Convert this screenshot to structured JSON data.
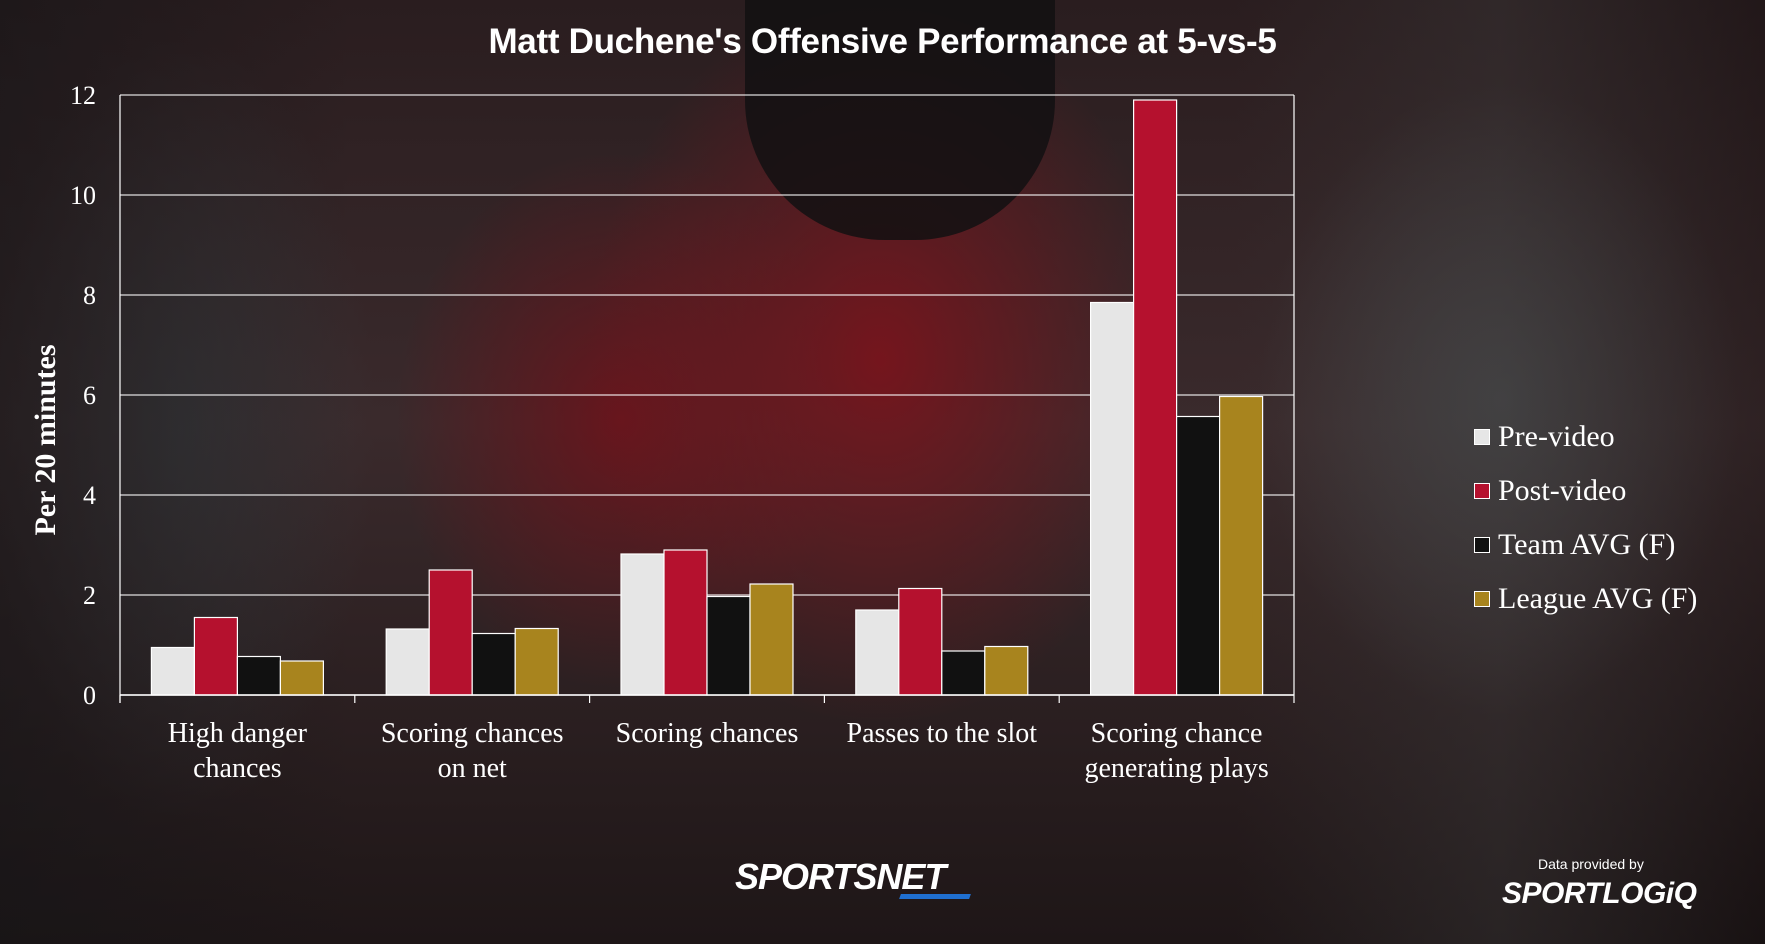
{
  "chart_data": {
    "type": "bar",
    "title": "Matt Duchene's Offensive Performance at 5-vs-5",
    "xlabel": "",
    "ylabel": "Per 20 minutes",
    "ylim": [
      0,
      12
    ],
    "yticks": [
      0,
      2,
      4,
      6,
      8,
      10,
      12
    ],
    "grid": true,
    "legend_position": "right",
    "categories": [
      [
        "High danger",
        "chances"
      ],
      [
        "Scoring chances",
        "on net"
      ],
      [
        "Scoring chances"
      ],
      [
        "Passes to the slot"
      ],
      [
        "Scoring chance",
        "generating plays"
      ]
    ],
    "series": [
      {
        "name": "Pre-video",
        "color": "#e6e6e6",
        "values": [
          0.95,
          1.32,
          2.82,
          1.7,
          7.85
        ]
      },
      {
        "name": "Post-video",
        "color": "#b5112e",
        "values": [
          1.55,
          2.5,
          2.9,
          2.13,
          11.9
        ]
      },
      {
        "name": "Team AVG (F)",
        "color": "#111111",
        "values": [
          0.77,
          1.23,
          1.97,
          0.88,
          5.57
        ]
      },
      {
        "name": "League AVG (F)",
        "color": "#a8841e",
        "values": [
          0.68,
          1.33,
          2.22,
          0.97,
          5.97
        ]
      }
    ]
  },
  "branding": {
    "watermark": "SPORTSNET",
    "credit_line": "Data provided by",
    "credit_logo": "SPORTLOGiQ"
  }
}
